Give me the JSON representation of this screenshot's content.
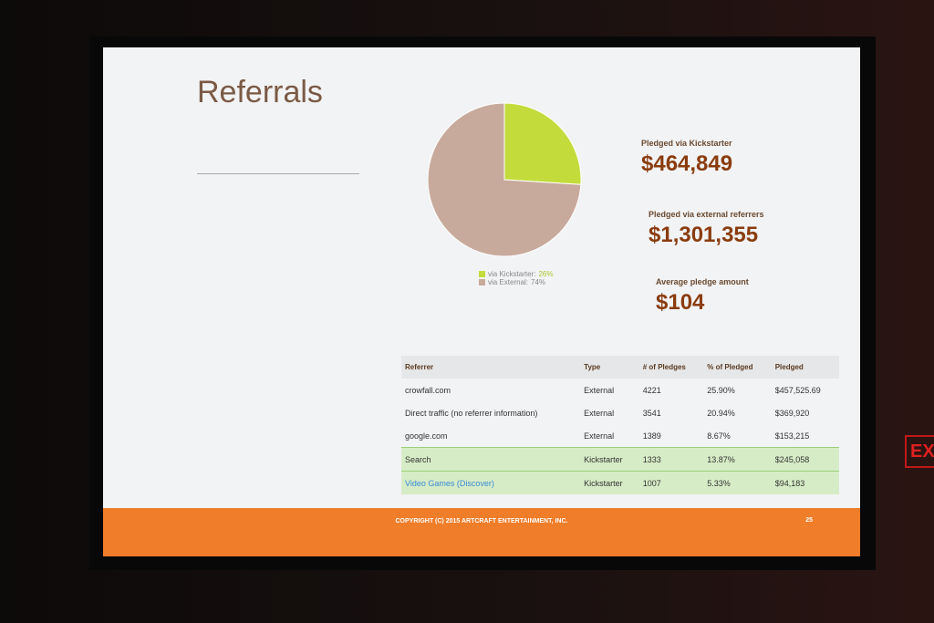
{
  "slide": {
    "title": "Referrals",
    "pie": {
      "type": "pie",
      "categories": [
        "via Kickstarter:",
        "via External:"
      ],
      "values": [
        26,
        74
      ],
      "value_labels": [
        "26%",
        "74%"
      ],
      "colors": [
        "#c3dc3c",
        "#c8aa9c"
      ]
    },
    "stats": [
      {
        "label": "Pledged via Kickstarter",
        "value": "$464,849"
      },
      {
        "label": "Pledged via external referrers",
        "value": "$1,301,355"
      },
      {
        "label": "Average pledge amount",
        "value": "$104"
      }
    ],
    "table": {
      "header": [
        "Referrer",
        "Type",
        "# of Pledges",
        "% of Pledged",
        "Pledged"
      ],
      "rows": [
        [
          "crowfall.com",
          "External",
          "4221",
          "25.90%",
          "$457,525.69"
        ],
        [
          "Direct traffic (no referrer information)",
          "External",
          "3541",
          "20.94%",
          "$369,920"
        ],
        [
          "google.com",
          "External",
          "1389",
          "8.67%",
          "$153,215"
        ],
        [
          "Search",
          "Kickstarter",
          "1333",
          "13.87%",
          "$245,058"
        ],
        [
          "Video Games (Discover)",
          "Kickstarter",
          "1007",
          "5.33%",
          "$94,183"
        ]
      ]
    },
    "footer": "COPYRIGHT (C) 2015 ARTCRAFT ENTERTAINMENT, INC.",
    "page_number": "25"
  },
  "exit_sign": "EXI"
}
